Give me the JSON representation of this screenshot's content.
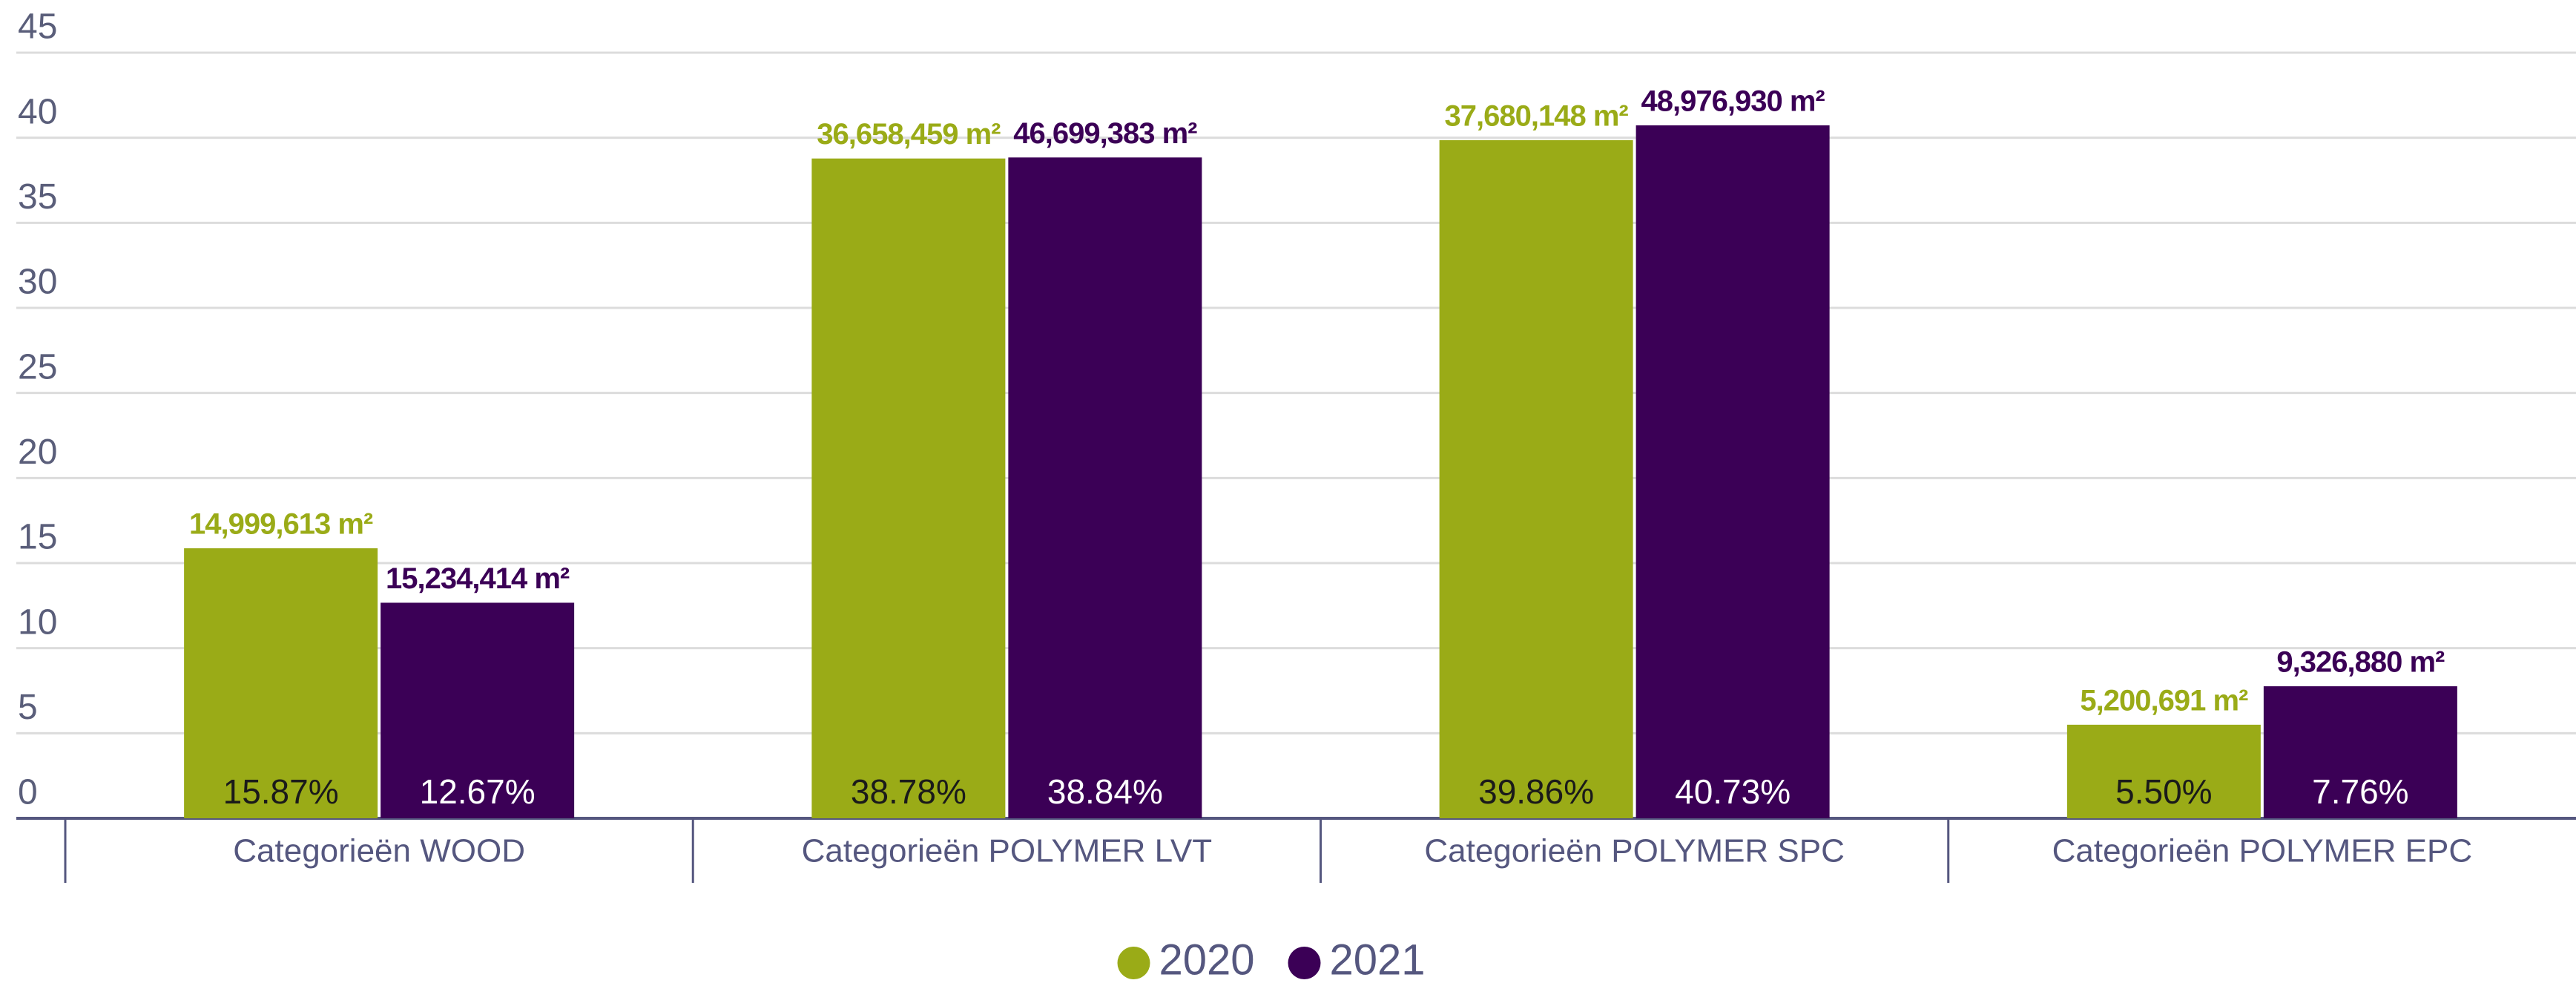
{
  "chart_data": {
    "type": "bar",
    "categories": [
      "Categorieën WOOD",
      "Categorieën POLYMER LVT",
      "Categorieën POLYMER SPC",
      "Categorieën POLYMER EPC"
    ],
    "series": [
      {
        "name": "2020",
        "color": "#9aab17",
        "values": [
          15.87,
          38.78,
          39.86,
          5.5
        ],
        "value_labels": [
          "15.87%",
          "38.78%",
          "39.86%",
          "5.50%"
        ],
        "areas": [
          14999613,
          36658459,
          37680148,
          5200691
        ],
        "area_labels": [
          "14,999,613 m²",
          "36,658,459 m²",
          "37,680,148 m²",
          "5,200,691 m²"
        ]
      },
      {
        "name": "2021",
        "color": "#3b0056",
        "values": [
          12.67,
          38.84,
          40.73,
          7.76
        ],
        "value_labels": [
          "12.67%",
          "38.84%",
          "40.73%",
          "7.76%"
        ],
        "areas": [
          15234414,
          46699383,
          48976930,
          9326880
        ],
        "area_labels": [
          "15,234,414 m²",
          "46,699,383 m²",
          "48,976,930 m²",
          "9,326,880 m²"
        ]
      }
    ],
    "ylim": [
      0,
      45
    ],
    "yticks": [
      0,
      5,
      10,
      15,
      20,
      25,
      30,
      35,
      40,
      45
    ],
    "grid": true,
    "legend": "bottom"
  }
}
